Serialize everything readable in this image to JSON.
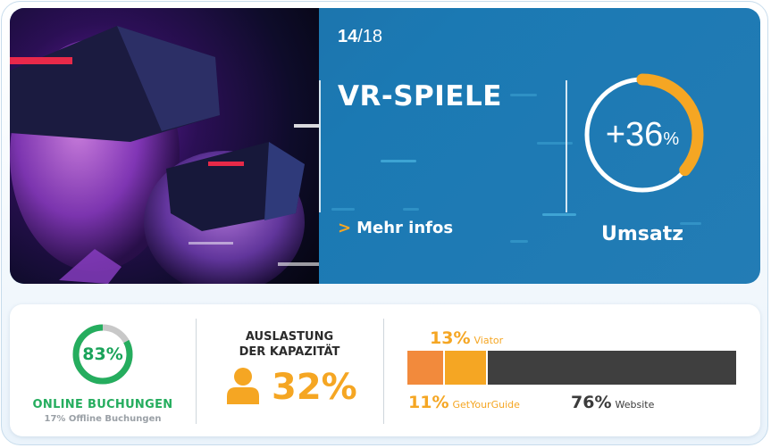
{
  "header": {
    "counter_current": "14",
    "counter_total": "/18",
    "title": "VR-SPIELE",
    "more_arrow": ">",
    "more_label": "Mehr infos"
  },
  "revenue": {
    "value": "+36",
    "unit": "%",
    "label": "Umsatz",
    "ring_fraction": 0.36,
    "ring_color": "#f5a623",
    "ring_track_color": "#ffffff"
  },
  "bookings": {
    "online_percent_text": "83%",
    "online_fraction": 0.83,
    "online_label": "ONLINE BUCHUNGEN",
    "offline_label": "17% Offline Buchungen",
    "online_color": "#25ad5e",
    "offline_color": "#c8c8c8"
  },
  "capacity": {
    "title_line1": "AUSLASTUNG",
    "title_line2": "DER KAPAZITÄT",
    "value": "32%",
    "icon": "person-icon",
    "color": "#f5a623"
  },
  "channels": {
    "viator_value": "13%",
    "viator_label": "Viator",
    "gyg_value": "11%",
    "gyg_label": "GetYourGuide",
    "website_value": "76%",
    "website_label": "Website",
    "shares": {
      "getyourguide": 11,
      "viator": 13,
      "website": 76
    }
  },
  "theme": {
    "panel_blue": "#1f6ea4",
    "accent_orange": "#f5a623",
    "accent_dark_orange": "#f28a3c",
    "bar_dark": "#3f3f3f"
  }
}
